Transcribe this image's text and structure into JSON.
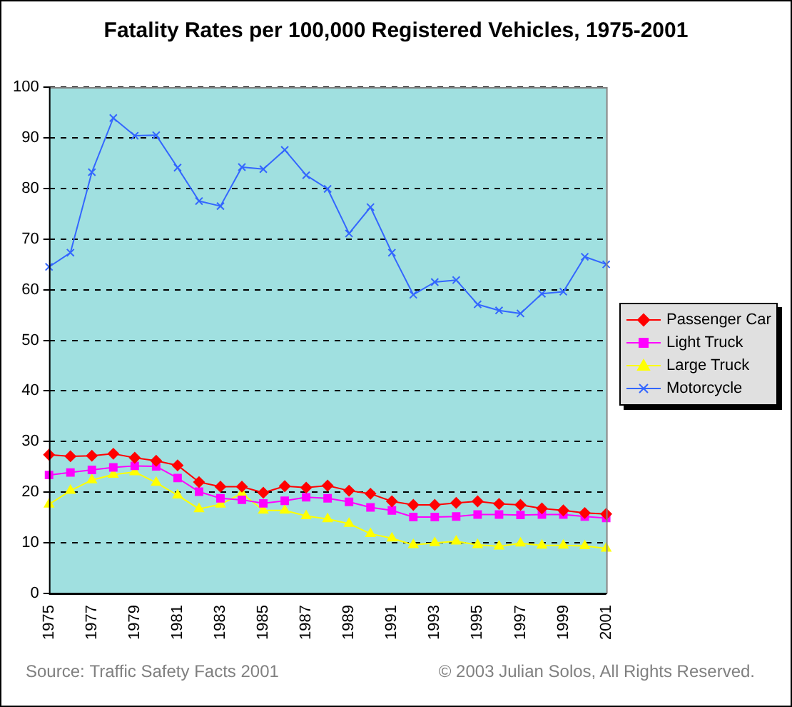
{
  "chart_data": {
    "type": "line",
    "title": "Fatality Rates per 100,000 Registered Vehicles, 1975-2001",
    "categories": [
      "1975",
      null,
      "1977",
      null,
      "1979",
      null,
      "1981",
      null,
      "1983",
      null,
      "1985",
      null,
      "1987",
      null,
      "1989",
      null,
      "1991",
      null,
      "1993",
      null,
      "1995",
      null,
      "1997",
      null,
      "1999",
      null,
      "2001"
    ],
    "series": [
      {
        "name": "Passenger Car",
        "color": "#ff0000",
        "marker": "diamond",
        "values": [
          27.4,
          27.1,
          27.2,
          27.6,
          26.8,
          26.2,
          25.3,
          22,
          21.1,
          21.1,
          19.9,
          21.2,
          20.9,
          21.3,
          20.3,
          19.7,
          18.2,
          17.5,
          17.5,
          17.9,
          18.2,
          17.7,
          17.5,
          16.8,
          16.4,
          15.9,
          15.7
        ]
      },
      {
        "name": "Light Truck",
        "color": "#ff00ff",
        "marker": "square",
        "values": [
          23.4,
          23.9,
          24.4,
          24.9,
          25.2,
          25.1,
          22.8,
          20.1,
          18.8,
          18.5,
          17.8,
          18.3,
          19,
          18.8,
          18.1,
          17,
          16.4,
          15.1,
          15.1,
          15.2,
          15.6,
          15.6,
          15.5,
          15.6,
          15.6,
          15.2,
          14.9
        ]
      },
      {
        "name": "Large Truck",
        "color": "#ffff00",
        "marker": "triangle",
        "values": [
          17.6,
          20.3,
          22.4,
          23.5,
          24,
          21.9,
          19.4,
          16.7,
          17.6,
          19.8,
          16.4,
          16.4,
          15.3,
          14.7,
          13.8,
          11.8,
          10.9,
          9.6,
          10,
          10.3,
          9.6,
          9.3,
          9.9,
          9.5,
          9.5,
          9.4,
          8.9
        ]
      },
      {
        "name": "Motorcycle",
        "color": "#3366ff",
        "marker": "cross",
        "values": [
          64.5,
          67.3,
          83.2,
          93.9,
          90.4,
          90.5,
          84.1,
          77.5,
          76.5,
          84.2,
          83.8,
          87.6,
          82.6,
          79.9,
          71.1,
          76.3,
          67.3,
          59,
          61.5,
          61.9,
          57.1,
          55.9,
          55.3,
          59.2,
          59.6,
          66.5,
          65
        ]
      }
    ],
    "ylim": [
      0,
      100
    ],
    "yticks": [
      0,
      10,
      20,
      30,
      40,
      50,
      60,
      70,
      80,
      90,
      100
    ],
    "grid": "y",
    "legend": "right",
    "annotations": [
      "Source: $_{}$Traffic Safety Facts 2001",
      "© 2003 Julian Solos, All Rights Reserved."
    ]
  }
}
